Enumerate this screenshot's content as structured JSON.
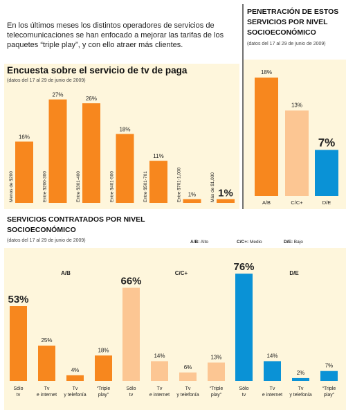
{
  "intro_text": "En los últimos meses los distintos operadores de servicios de telecomunicaciones se han enfocado a mejorar las tarifas de los paquetes “triple play”, y con ello atraer más clientes.",
  "colors": {
    "orange": "#f7871e",
    "light_orange": "#fcc693",
    "blue": "#0a92d6",
    "panel_bg": "#fef6dc",
    "divider": "#111111"
  },
  "chart_data": [
    {
      "id": "survey",
      "type": "bar",
      "title": "Encuesta sobre el servicio de tv de paga",
      "subtitle": "(datos del 17 al 29 de junio de 2009)",
      "categories": [
        "Menos de $200",
        "Entre $200-300",
        "Entre $301-400",
        "Entre $401-500",
        "Entre $501-701",
        "Entre $701-1,000",
        "Más de $1,000"
      ],
      "values": [
        16,
        27,
        26,
        18,
        11,
        1,
        1
      ],
      "value_labels": [
        "16%",
        "27%",
        "26%",
        "18%",
        "11%",
        "1%",
        "1%"
      ],
      "ylim": [
        0,
        30
      ],
      "bar_color": "#f7871e"
    },
    {
      "id": "penetration",
      "type": "bar",
      "title": "PENETRACIÓN DE ESTOS SERVICIOS POR NIVEL SOCIOECONÓMICO",
      "subtitle": "(datos del 17 al 29 de junio de 2009)",
      "categories": [
        "A/B",
        "C/C+",
        "D/E"
      ],
      "values": [
        18,
        13,
        7
      ],
      "value_labels": [
        "18%",
        "13%",
        "7%"
      ],
      "colors": [
        "#f7871e",
        "#fcc693",
        "#0a92d6"
      ],
      "ylim": [
        0,
        20
      ]
    },
    {
      "id": "services",
      "type": "bar",
      "title": "SERVICIOS CONTRATADOS POR NIVEL SOCIOECONÓMICO",
      "subtitle": "(datos del 17 al 29 de junio de 2009)",
      "legend": [
        {
          "code": "A/B:",
          "label": "Alto"
        },
        {
          "code": "C/C+:",
          "label": "Medio"
        },
        {
          "code": "D/E:",
          "label": "Bajo"
        }
      ],
      "categories": [
        "Sólo tv",
        "Tv e internet",
        "Tv y telefonía",
        "“Triple play”"
      ],
      "series": [
        {
          "name": "A/B",
          "values": [
            53,
            25,
            4,
            18
          ],
          "value_labels": [
            "53%",
            "25%",
            "4%",
            "18%"
          ],
          "color": "#f7871e"
        },
        {
          "name": "C/C+",
          "values": [
            66,
            14,
            6,
            13
          ],
          "value_labels": [
            "66%",
            "14%",
            "6%",
            "13%"
          ],
          "color": "#fcc693"
        },
        {
          "name": "D/E",
          "values": [
            76,
            14,
            2,
            7
          ],
          "value_labels": [
            "76%",
            "14%",
            "2%",
            "7%"
          ],
          "color": "#0a92d6"
        }
      ],
      "ylim": [
        0,
        80
      ]
    }
  ]
}
